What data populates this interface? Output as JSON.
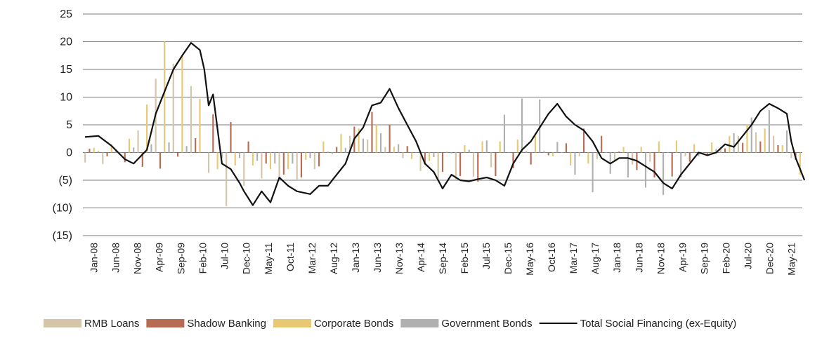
{
  "chart_data": {
    "type": "bar",
    "title": "",
    "xlabel": "",
    "ylabel": "",
    "ylim": [
      -15,
      25
    ],
    "y_ticks": [
      {
        "value": 25,
        "label": "25"
      },
      {
        "value": 20,
        "label": "20"
      },
      {
        "value": 15,
        "label": "15"
      },
      {
        "value": 10,
        "label": "10"
      },
      {
        "value": 5,
        "label": "5"
      },
      {
        "value": 0,
        "label": "0"
      },
      {
        "value": -5,
        "label": "(5)"
      },
      {
        "value": -10,
        "label": "(10)"
      },
      {
        "value": -15,
        "label": "(15)"
      }
    ],
    "x_range": [
      "2008-01",
      "2021-07"
    ],
    "x_tick_labels": [
      "Jan-08",
      "Jun-08",
      "Nov-08",
      "Apr-09",
      "Sep-09",
      "Feb-10",
      "Jul-10",
      "Dec-10",
      "May-11",
      "Oct-11",
      "Mar-12",
      "Aug-12",
      "Jan-13",
      "Jun-13",
      "Nov-13",
      "Apr-14",
      "Sep-14",
      "Feb-15",
      "Jul-15",
      "Dec-15",
      "May-16",
      "Oct-16",
      "Mar-17",
      "Aug-17",
      "Jan-18",
      "Jun-18",
      "Nov-18",
      "Apr-19",
      "Sep-19",
      "Feb-20",
      "Jul-20",
      "Dec-20",
      "May-21"
    ],
    "grid": "horizontal",
    "legend_position": "bottom",
    "series": [
      {
        "name": "RMB Loans",
        "kind": "bar",
        "color": "#d4c5a9",
        "points": [
          [
            "2008-01",
            -1.8
          ],
          [
            "2008-07",
            -2.2
          ],
          [
            "2009-01",
            4
          ],
          [
            "2009-07",
            18
          ],
          [
            "2010-01",
            12
          ],
          [
            "2010-07",
            -11.5
          ],
          [
            "2011-01",
            -6
          ],
          [
            "2011-07",
            -4
          ],
          [
            "2012-01",
            -5
          ],
          [
            "2012-07",
            -2
          ],
          [
            "2013-01",
            3
          ],
          [
            "2013-07",
            2
          ],
          [
            "2014-01",
            -1
          ],
          [
            "2014-07",
            -4.5
          ],
          [
            "2015-01",
            -5
          ],
          [
            "2015-07",
            -4
          ],
          [
            "2016-01",
            0
          ],
          [
            "2016-07",
            0.5
          ],
          [
            "2017-01",
            0
          ],
          [
            "2017-07",
            -1
          ],
          [
            "2018-01",
            -1.5
          ],
          [
            "2018-07",
            -2.5
          ],
          [
            "2019-01",
            0
          ],
          [
            "2019-07",
            -1
          ],
          [
            "2020-01",
            1
          ],
          [
            "2020-07",
            4
          ],
          [
            "2021-01",
            3
          ],
          [
            "2021-07",
            -3
          ]
        ]
      },
      {
        "name": "Shadow Banking",
        "kind": "bar",
        "color": "#b86b53",
        "points": [
          [
            "2008-01",
            1
          ],
          [
            "2008-07",
            -1
          ],
          [
            "2009-01",
            -2.5
          ],
          [
            "2009-07",
            -3
          ],
          [
            "2010-01",
            1.5
          ],
          [
            "2010-07",
            8
          ],
          [
            "2011-01",
            3
          ],
          [
            "2011-07",
            -3
          ],
          [
            "2012-01",
            -5
          ],
          [
            "2012-07",
            -2
          ],
          [
            "2013-01",
            4
          ],
          [
            "2013-07",
            8
          ],
          [
            "2014-01",
            2
          ],
          [
            "2014-07",
            -3
          ],
          [
            "2015-01",
            -4
          ],
          [
            "2015-07",
            -5.5
          ],
          [
            "2016-01",
            -3
          ],
          [
            "2016-07",
            -2
          ],
          [
            "2017-01",
            1
          ],
          [
            "2017-07",
            5
          ],
          [
            "2018-01",
            1
          ],
          [
            "2018-07",
            -4
          ],
          [
            "2019-01",
            -5
          ],
          [
            "2019-07",
            -1
          ],
          [
            "2020-01",
            0.5
          ],
          [
            "2020-07",
            2
          ],
          [
            "2021-01",
            2
          ],
          [
            "2021-07",
            -2
          ]
        ]
      },
      {
        "name": "Corporate Bonds",
        "kind": "bar",
        "color": "#e8c872",
        "points": [
          [
            "2008-01",
            0.5
          ],
          [
            "2008-07",
            1.5
          ],
          [
            "2009-01",
            3
          ],
          [
            "2009-07",
            20
          ],
          [
            "2010-01",
            16
          ],
          [
            "2010-07",
            -3
          ],
          [
            "2011-01",
            -2
          ],
          [
            "2011-07",
            -3
          ],
          [
            "2012-01",
            -3
          ],
          [
            "2012-07",
            2
          ],
          [
            "2013-01",
            4
          ],
          [
            "2013-07",
            5
          ],
          [
            "2014-01",
            -1
          ],
          [
            "2014-07",
            -1.5
          ],
          [
            "2015-01",
            1
          ],
          [
            "2015-07",
            2
          ],
          [
            "2016-01",
            2
          ],
          [
            "2016-07",
            3
          ],
          [
            "2017-01",
            -2.5
          ],
          [
            "2017-07",
            -2
          ],
          [
            "2018-01",
            1
          ],
          [
            "2018-07",
            1
          ],
          [
            "2019-01",
            2.5
          ],
          [
            "2019-07",
            1.5
          ],
          [
            "2020-01",
            2
          ],
          [
            "2020-07",
            5
          ],
          [
            "2021-01",
            4
          ],
          [
            "2021-07",
            -4
          ]
        ]
      },
      {
        "name": "Government Bonds",
        "kind": "bar",
        "color": "#b0b0b0",
        "points": [
          [
            "2008-01",
            0
          ],
          [
            "2008-07",
            0.5
          ],
          [
            "2009-01",
            1
          ],
          [
            "2009-07",
            2
          ],
          [
            "2010-01",
            1
          ],
          [
            "2010-07",
            -1
          ],
          [
            "2011-01",
            -1
          ],
          [
            "2011-07",
            -2
          ],
          [
            "2012-01",
            -2
          ],
          [
            "2012-07",
            0
          ],
          [
            "2013-01",
            1
          ],
          [
            "2013-07",
            4
          ],
          [
            "2014-01",
            1
          ],
          [
            "2014-07",
            -1
          ],
          [
            "2015-01",
            0
          ],
          [
            "2015-07",
            1
          ],
          [
            "2016-01",
            8
          ],
          [
            "2016-07",
            11.5
          ],
          [
            "2017-01",
            0
          ],
          [
            "2017-07",
            -8
          ],
          [
            "2018-01",
            -3
          ],
          [
            "2018-07",
            -6
          ],
          [
            "2019-01",
            -8
          ],
          [
            "2019-07",
            -1
          ],
          [
            "2020-01",
            1
          ],
          [
            "2020-07",
            6
          ],
          [
            "2021-01",
            8
          ],
          [
            "2021-07",
            0
          ]
        ]
      },
      {
        "name": "Total Social Financing (ex-Equity)",
        "kind": "line",
        "color": "#111111",
        "points": [
          [
            "2008-01",
            2.8
          ],
          [
            "2008-04",
            3
          ],
          [
            "2008-07",
            1.2
          ],
          [
            "2008-10",
            -1.2
          ],
          [
            "2008-12",
            -2
          ],
          [
            "2009-03",
            0.5
          ],
          [
            "2009-05",
            7
          ],
          [
            "2009-07",
            11
          ],
          [
            "2009-09",
            15
          ],
          [
            "2009-11",
            17.5
          ],
          [
            "2010-01",
            19.8
          ],
          [
            "2010-03",
            18.5
          ],
          [
            "2010-04",
            15
          ],
          [
            "2010-05",
            8.5
          ],
          [
            "2010-06",
            10.5
          ],
          [
            "2010-08",
            -2
          ],
          [
            "2010-10",
            -3
          ],
          [
            "2010-12",
            -5.5
          ],
          [
            "2011-01",
            -7
          ],
          [
            "2011-03",
            -9.5
          ],
          [
            "2011-05",
            -7
          ],
          [
            "2011-07",
            -9
          ],
          [
            "2011-09",
            -4.5
          ],
          [
            "2011-11",
            -6
          ],
          [
            "2012-01",
            -7
          ],
          [
            "2012-04",
            -7.5
          ],
          [
            "2012-06",
            -6
          ],
          [
            "2012-08",
            -6
          ],
          [
            "2012-10",
            -4
          ],
          [
            "2012-12",
            -2
          ],
          [
            "2013-02",
            2.5
          ],
          [
            "2013-04",
            4.5
          ],
          [
            "2013-06",
            8.5
          ],
          [
            "2013-08",
            9
          ],
          [
            "2013-10",
            11.5
          ],
          [
            "2013-12",
            8
          ],
          [
            "2014-02",
            5
          ],
          [
            "2014-04",
            2
          ],
          [
            "2014-06",
            -2
          ],
          [
            "2014-08",
            -3.5
          ],
          [
            "2014-10",
            -6.5
          ],
          [
            "2014-12",
            -4
          ],
          [
            "2015-02",
            -5
          ],
          [
            "2015-04",
            -5.2
          ],
          [
            "2015-06",
            -4.8
          ],
          [
            "2015-08",
            -4.5
          ],
          [
            "2015-10",
            -5
          ],
          [
            "2015-12",
            -6
          ],
          [
            "2016-02",
            -2
          ],
          [
            "2016-04",
            0.5
          ],
          [
            "2016-06",
            2
          ],
          [
            "2016-08",
            4.5
          ],
          [
            "2016-10",
            7
          ],
          [
            "2016-12",
            8.8
          ],
          [
            "2017-02",
            6.5
          ],
          [
            "2017-04",
            5
          ],
          [
            "2017-06",
            4
          ],
          [
            "2017-08",
            2
          ],
          [
            "2017-10",
            -1
          ],
          [
            "2017-12",
            -2
          ],
          [
            "2018-02",
            -1
          ],
          [
            "2018-04",
            -1
          ],
          [
            "2018-06",
            -1.5
          ],
          [
            "2018-08",
            -2.5
          ],
          [
            "2018-10",
            -3.5
          ],
          [
            "2018-12",
            -5.5
          ],
          [
            "2019-02",
            -6.5
          ],
          [
            "2019-04",
            -4
          ],
          [
            "2019-06",
            -2
          ],
          [
            "2019-08",
            0
          ],
          [
            "2019-10",
            -0.5
          ],
          [
            "2019-12",
            0
          ],
          [
            "2020-02",
            1.5
          ],
          [
            "2020-04",
            1
          ],
          [
            "2020-06",
            3
          ],
          [
            "2020-08",
            5
          ],
          [
            "2020-10",
            7.5
          ],
          [
            "2020-12",
            8.8
          ],
          [
            "2021-02",
            8
          ],
          [
            "2021-04",
            7
          ],
          [
            "2021-05",
            2
          ],
          [
            "2021-06",
            -1
          ],
          [
            "2021-07",
            -3
          ],
          [
            "2021-08",
            -5
          ]
        ]
      }
    ]
  }
}
